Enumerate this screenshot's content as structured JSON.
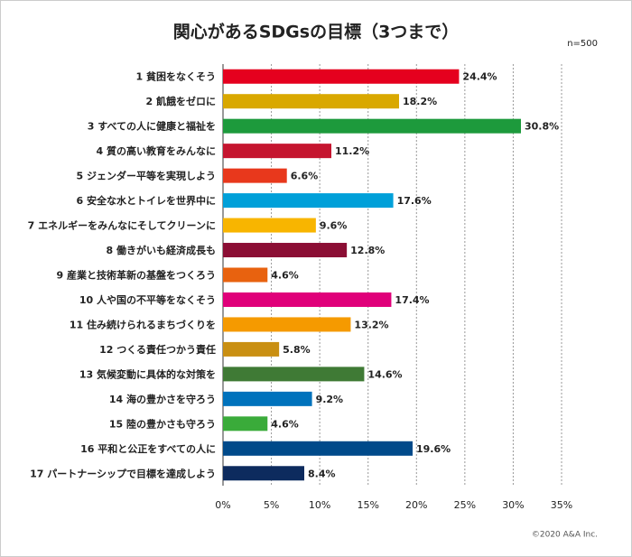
{
  "chart_data": {
    "type": "barh",
    "title": "関心があるSDGsの目標（3つまで）",
    "subtitle": "n=500",
    "footnote": "©2020 A&A Inc.",
    "categories": [
      "1 貧困をなくそう",
      "2 飢餓をゼロに",
      "3 すべての人に健康と福祉を",
      "4 質の高い教育をみんなに",
      "5 ジェンダー平等を実現しよう",
      "6 安全な水とトイレを世界中に",
      "7 エネルギーをみんなにそしてクリーンに",
      "8 働きがいも経済成長も",
      "9 産業と技術革新の基盤をつくろう",
      "10 人や国の不平等をなくそう",
      "11 住み続けられるまちづくりを",
      "12 つくる責任つかう責任",
      "13 気候変動に具体的な対策を",
      "14 海の豊かさを守ろう",
      "15 陸の豊かさも守ろう",
      "16 平和と公正をすべての人に",
      "17 パートナーシップで目標を達成しよう"
    ],
    "values": [
      24.4,
      18.2,
      30.8,
      11.2,
      6.6,
      17.6,
      9.6,
      12.8,
      4.6,
      17.4,
      13.2,
      5.8,
      14.6,
      9.2,
      4.6,
      19.6,
      8.4
    ],
    "value_labels": [
      "24.4%",
      "18.2%",
      "30.8%",
      "11.2%",
      "6.6%",
      "17.6%",
      "9.6%",
      "12.8%",
      "4.6%",
      "17.4%",
      "13.2%",
      "5.8%",
      "14.6%",
      "9.2%",
      "4.6%",
      "19.6%",
      "8.4%"
    ],
    "colors": [
      "#e5001e",
      "#d9a800",
      "#1d9a3c",
      "#c5152f",
      "#e8381c",
      "#00a0d9",
      "#f8b500",
      "#8b0e34",
      "#e8620f",
      "#e0007a",
      "#f59a00",
      "#c98f12",
      "#3f7a35",
      "#0072bc",
      "#3aab3a",
      "#004a8a",
      "#0d2b5e"
    ],
    "xlim": [
      0,
      35
    ],
    "xticks": [
      {
        "value": 0,
        "label": "0%"
      },
      {
        "value": 5,
        "label": "5%"
      },
      {
        "value": 10,
        "label": "10%"
      },
      {
        "value": 15,
        "label": "15%"
      },
      {
        "value": 20,
        "label": "20%"
      },
      {
        "value": 25,
        "label": "25%"
      },
      {
        "value": 30,
        "label": "30%"
      },
      {
        "value": 35,
        "label": "35%"
      }
    ],
    "grid": true
  }
}
